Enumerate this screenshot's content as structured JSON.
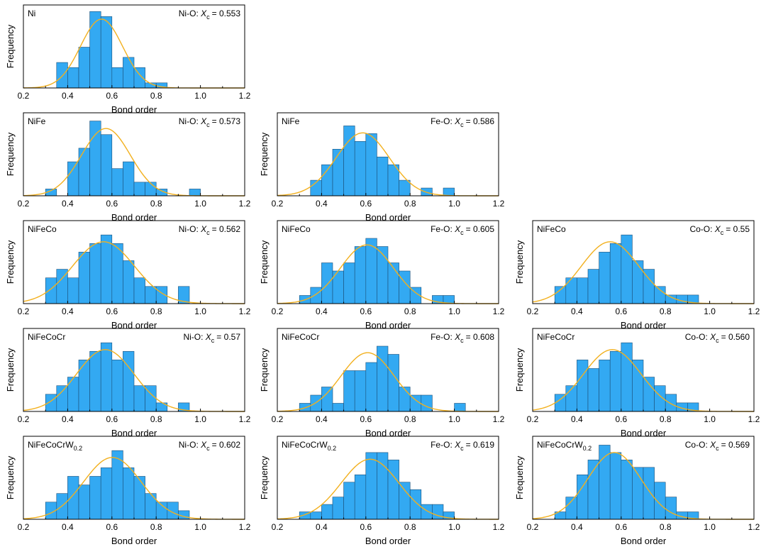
{
  "colors": {
    "bar_fill": "#33a9f2",
    "bar_edge": "#1b4f78",
    "fit_line": "#f2b01e"
  },
  "chart_data": [
    {
      "type": "bar",
      "alloy": "Ni",
      "alloy_base": "Ni",
      "alloy_sub": "",
      "bond": "Ni-O",
      "xc_symbol": "X",
      "xc_sub": "c",
      "xc_value": "= 0.553",
      "xc": 0.553,
      "sigma": 0.095,
      "title": "",
      "xlabel": "Bond order",
      "ylabel": "Frequency",
      "xlim": [
        0.2,
        1.2
      ],
      "xticks": [
        "0.2",
        "0.4",
        "0.6",
        "0.8",
        "1.0",
        "1.2"
      ],
      "bin_width": 0.05,
      "bin_starts": [
        0.35,
        0.4,
        0.45,
        0.5,
        0.55,
        0.6,
        0.65,
        0.7,
        0.75,
        0.8
      ],
      "counts": [
        5,
        4,
        8,
        15,
        14,
        4,
        6,
        4,
        1,
        1
      ],
      "ymax": 16
    },
    {
      "type": "bar",
      "alloy": "NiFe",
      "alloy_base": "NiFe",
      "alloy_sub": "",
      "bond": "Ni-O",
      "xc_symbol": "X",
      "xc_sub": "c",
      "xc_value": "= 0.573",
      "xc": 0.573,
      "sigma": 0.11,
      "title": "",
      "xlabel": "Bond order",
      "ylabel": "Frequency",
      "xlim": [
        0.2,
        1.2
      ],
      "xticks": [
        "0.2",
        "0.4",
        "0.6",
        "0.8",
        "1.0",
        "1.2"
      ],
      "bin_width": 0.05,
      "bin_starts": [
        0.3,
        0.35,
        0.4,
        0.45,
        0.5,
        0.55,
        0.6,
        0.65,
        0.7,
        0.75,
        0.8,
        0.85,
        0.9,
        0.95
      ],
      "counts": [
        1,
        0,
        5,
        7,
        11,
        9,
        4,
        5,
        2,
        2,
        1,
        0,
        0,
        1
      ],
      "ymax": 12
    },
    {
      "type": "bar",
      "alloy": "NiFe",
      "alloy_base": "NiFe",
      "alloy_sub": "",
      "bond": "Fe-O",
      "xc_symbol": "X",
      "xc_sub": "c",
      "xc_value": "= 0.586",
      "xc": 0.586,
      "sigma": 0.12,
      "title": "",
      "xlabel": "Bond order",
      "ylabel": "Frequency",
      "xlim": [
        0.2,
        1.2
      ],
      "xticks": [
        "0.2",
        "0.4",
        "0.6",
        "0.8",
        "1.0",
        "1.2"
      ],
      "bin_width": 0.05,
      "bin_starts": [
        0.35,
        0.4,
        0.45,
        0.5,
        0.55,
        0.6,
        0.65,
        0.7,
        0.75,
        0.8,
        0.85,
        0.9,
        0.95
      ],
      "counts": [
        2,
        4,
        6,
        9,
        7,
        8,
        5,
        4,
        2,
        0,
        1,
        0,
        1
      ],
      "ymax": 10.5
    },
    {
      "type": "bar",
      "alloy": "NiFeCo",
      "alloy_base": "NiFeCo",
      "alloy_sub": "",
      "bond": "Ni-O",
      "xc_symbol": "X",
      "xc_sub": "c",
      "xc_value": "= 0.562",
      "xc": 0.562,
      "sigma": 0.14,
      "title": "",
      "xlabel": "Bond order",
      "ylabel": "Frequency",
      "xlim": [
        0.2,
        1.2
      ],
      "xticks": [
        "0.2",
        "0.4",
        "0.6",
        "0.8",
        "1.0",
        "1.2"
      ],
      "bin_width": 0.05,
      "bin_starts": [
        0.3,
        0.35,
        0.4,
        0.45,
        0.5,
        0.55,
        0.6,
        0.65,
        0.7,
        0.75,
        0.8,
        0.85,
        0.9
      ],
      "counts": [
        3,
        4,
        3,
        6,
        7,
        8,
        7,
        5,
        3,
        2,
        2,
        0,
        2
      ],
      "ymax": 9.5
    },
    {
      "type": "bar",
      "alloy": "NiFeCo",
      "alloy_base": "NiFeCo",
      "alloy_sub": "",
      "bond": "Fe-O",
      "xc_symbol": "X",
      "xc_sub": "c",
      "xc_value": "= 0.605",
      "xc": 0.605,
      "sigma": 0.12,
      "title": "",
      "xlabel": "Bond order",
      "ylabel": "Frequency",
      "xlim": [
        0.2,
        1.2
      ],
      "xticks": [
        "0.2",
        "0.4",
        "0.6",
        "0.8",
        "1.0",
        "1.2"
      ],
      "bin_width": 0.05,
      "bin_starts": [
        0.3,
        0.35,
        0.4,
        0.45,
        0.5,
        0.55,
        0.6,
        0.65,
        0.7,
        0.75,
        0.8,
        0.85,
        0.9,
        0.95
      ],
      "counts": [
        1,
        2,
        5,
        4,
        5,
        7,
        8,
        7,
        5,
        4,
        2,
        0,
        1,
        1
      ],
      "ymax": 10
    },
    {
      "type": "bar",
      "alloy": "NiFeCo",
      "alloy_base": "NiFeCo",
      "alloy_sub": "",
      "bond": "Co-O",
      "xc_symbol": "X",
      "xc_sub": "c",
      "xc_value": "= 0.55",
      "xc": 0.55,
      "sigma": 0.13,
      "title": "",
      "xlabel": "Bond order",
      "ylabel": "Frequency",
      "xlim": [
        0.2,
        1.2
      ],
      "xticks": [
        "0.2",
        "0.4",
        "0.6",
        "0.8",
        "1.0",
        "1.2"
      ],
      "bin_width": 0.05,
      "bin_starts": [
        0.3,
        0.35,
        0.4,
        0.45,
        0.5,
        0.55,
        0.6,
        0.65,
        0.7,
        0.75,
        0.8,
        0.85,
        0.9
      ],
      "counts": [
        2,
        3,
        3,
        4,
        6,
        7,
        8,
        5,
        4,
        2,
        1,
        1,
        1
      ],
      "ymax": 9.5
    },
    {
      "type": "bar",
      "alloy": "NiFeCoCr",
      "alloy_base": "NiFeCoCr",
      "alloy_sub": "",
      "bond": "Ni-O",
      "xc_symbol": "X",
      "xc_sub": "c",
      "xc_value": "= 0.57",
      "xc": 0.57,
      "sigma": 0.13,
      "title": "",
      "xlabel": "Bond order",
      "ylabel": "Frequency",
      "xlim": [
        0.2,
        1.2
      ],
      "xticks": [
        "0.2",
        "0.4",
        "0.6",
        "0.8",
        "1.0",
        "1.2"
      ],
      "bin_width": 0.05,
      "bin_starts": [
        0.3,
        0.35,
        0.4,
        0.45,
        0.5,
        0.55,
        0.6,
        0.65,
        0.7,
        0.75,
        0.8,
        0.85,
        0.9
      ],
      "counts": [
        2,
        3,
        4,
        6,
        7,
        8,
        6,
        7,
        3,
        3,
        1,
        0,
        1
      ],
      "ymax": 9.5
    },
    {
      "type": "bar",
      "alloy": "NiFeCoCr",
      "alloy_base": "NiFeCoCr",
      "alloy_sub": "",
      "bond": "Fe-O",
      "xc_symbol": "X",
      "xc_sub": "c",
      "xc_value": "= 0.608",
      "xc": 0.608,
      "sigma": 0.12,
      "title": "",
      "xlabel": "Bond order",
      "ylabel": "Frequency",
      "xlim": [
        0.2,
        1.2
      ],
      "xticks": [
        "0.2",
        "0.4",
        "0.6",
        "0.8",
        "1.0",
        "1.2"
      ],
      "bin_width": 0.05,
      "bin_starts": [
        0.3,
        0.35,
        0.4,
        0.45,
        0.5,
        0.55,
        0.6,
        0.65,
        0.7,
        0.75,
        0.8,
        0.85,
        0.9,
        0.95,
        1.0
      ],
      "counts": [
        1,
        2,
        3,
        1,
        5,
        5,
        6,
        8,
        7,
        3,
        2,
        2,
        0,
        0,
        1
      ],
      "ymax": 10
    },
    {
      "type": "bar",
      "alloy": "NiFeCoCr",
      "alloy_base": "NiFeCoCr",
      "alloy_sub": "",
      "bond": "Co-O",
      "xc_symbol": "X",
      "xc_sub": "c",
      "xc_value": "= 0.560",
      "xc": 0.56,
      "sigma": 0.13,
      "title": "",
      "xlabel": "Bond order",
      "ylabel": "Frequency",
      "xlim": [
        0.2,
        1.2
      ],
      "xticks": [
        "0.2",
        "0.4",
        "0.6",
        "0.8",
        "1.0",
        "1.2"
      ],
      "bin_width": 0.05,
      "bin_starts": [
        0.3,
        0.35,
        0.4,
        0.45,
        0.5,
        0.55,
        0.6,
        0.65,
        0.7,
        0.75,
        0.8,
        0.85,
        0.9
      ],
      "counts": [
        2,
        3,
        6,
        5,
        6,
        7,
        8,
        6,
        4,
        3,
        2,
        1,
        1
      ],
      "ymax": 9.5
    },
    {
      "type": "bar",
      "alloy": "NiFeCoCrW0.2",
      "alloy_base": "NiFeCoCrW",
      "alloy_sub": "0.2",
      "bond": "Ni-O",
      "xc_symbol": "X",
      "xc_sub": "c",
      "xc_value": "= 0.602",
      "xc": 0.602,
      "sigma": 0.13,
      "title": "",
      "xlabel": "Bond order",
      "ylabel": "Frequency",
      "xlim": [
        0.2,
        1.2
      ],
      "xticks": [
        "0.2",
        "0.4",
        "0.6",
        "0.8",
        "1.0",
        "1.2"
      ],
      "bin_width": 0.05,
      "bin_starts": [
        0.3,
        0.35,
        0.4,
        0.45,
        0.5,
        0.55,
        0.6,
        0.65,
        0.7,
        0.75,
        0.8,
        0.85,
        0.9
      ],
      "counts": [
        2,
        3,
        5,
        4,
        5,
        6,
        8,
        6,
        5,
        3,
        2,
        2,
        1
      ],
      "ymax": 9.5
    },
    {
      "type": "bar",
      "alloy": "NiFeCoCrW0.2",
      "alloy_base": "NiFeCoCrW",
      "alloy_sub": "0.2",
      "bond": "Fe-O",
      "xc_symbol": "X",
      "xc_sub": "c",
      "xc_value": "= 0.619",
      "xc": 0.619,
      "sigma": 0.13,
      "title": "",
      "xlabel": "Bond order",
      "ylabel": "Frequency",
      "xlim": [
        0.2,
        1.2
      ],
      "xticks": [
        "0.2",
        "0.4",
        "0.6",
        "0.8",
        "1.0",
        "1.2"
      ],
      "bin_width": 0.05,
      "bin_starts": [
        0.3,
        0.35,
        0.4,
        0.45,
        0.5,
        0.55,
        0.6,
        0.65,
        0.7,
        0.75,
        0.8,
        0.85,
        0.9,
        0.95
      ],
      "counts": [
        1,
        1,
        2,
        3,
        5,
        6,
        9,
        9,
        8,
        5,
        4,
        2,
        2,
        1
      ],
      "ymax": 11
    },
    {
      "type": "bar",
      "alloy": "NiFeCoCrW0.2",
      "alloy_base": "NiFeCoCrW",
      "alloy_sub": "0.2",
      "bond": "Co-O",
      "xc_symbol": "X",
      "xc_sub": "c",
      "xc_value": "= 0.569",
      "xc": 0.569,
      "sigma": 0.12,
      "title": "",
      "xlabel": "Bond order",
      "ylabel": "Frequency",
      "xlim": [
        0.2,
        1.2
      ],
      "xticks": [
        "0.2",
        "0.4",
        "0.6",
        "0.8",
        "1.0",
        "1.2"
      ],
      "bin_width": 0.05,
      "bin_starts": [
        0.3,
        0.35,
        0.4,
        0.45,
        0.5,
        0.55,
        0.6,
        0.65,
        0.7,
        0.75,
        0.8,
        0.85,
        0.9
      ],
      "counts": [
        1,
        3,
        6,
        8,
        10,
        9,
        8,
        7,
        7,
        5,
        3,
        1,
        1
      ],
      "ymax": 11
    }
  ]
}
